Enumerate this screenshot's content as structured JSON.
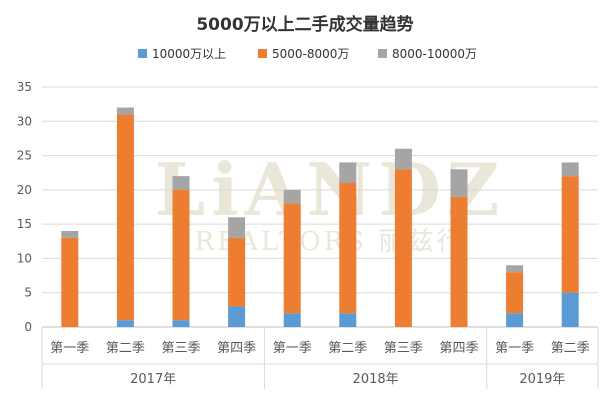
{
  "chart_data": {
    "type": "bar",
    "stacked": true,
    "title": "5000万以上二手成交量趋势",
    "watermark": {
      "brand": "LiANDZ",
      "sub": "REALTORS 丽兹行"
    },
    "categories": [
      "第一季",
      "第二季",
      "第三季",
      "第四季",
      "第一季",
      "第二季",
      "第三季",
      "第四季",
      "第一季",
      "第二季"
    ],
    "groups": [
      {
        "label": "2017年",
        "count": 4
      },
      {
        "label": "2018年",
        "count": 4
      },
      {
        "label": "2019年",
        "count": 2
      }
    ],
    "series": [
      {
        "name": "10000万以上",
        "color": "#5b9bd5",
        "values": [
          0,
          1,
          1,
          3,
          2,
          2,
          0,
          0,
          2,
          5
        ]
      },
      {
        "name": "5000-8000万",
        "color": "#ed7d31",
        "values": [
          13,
          30,
          19,
          10,
          16,
          19,
          23,
          19,
          6,
          17
        ]
      },
      {
        "name": "8000-10000万",
        "color": "#a5a5a5",
        "values": [
          1,
          1,
          2,
          3,
          2,
          3,
          3,
          4,
          1,
          2
        ]
      }
    ],
    "ylim": [
      0,
      35
    ],
    "yticks": [
      0,
      5,
      10,
      15,
      20,
      25,
      30,
      35
    ],
    "grid": true,
    "legend_position": "top"
  }
}
